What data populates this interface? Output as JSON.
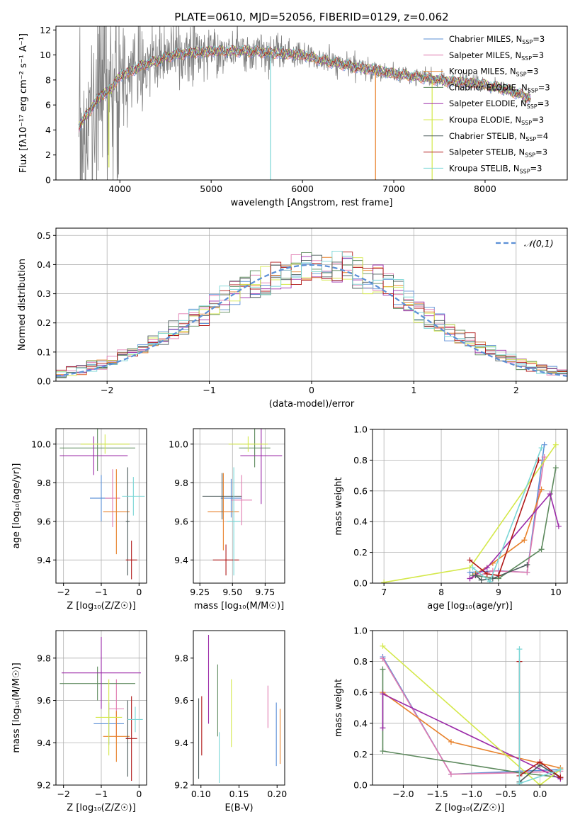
{
  "figure": {
    "title": "PLATE=0610, MJD=52056, FIBERID=0129, z=0.062"
  },
  "models": [
    {
      "label": "Chabrier MILES, N_SSP=3",
      "imf": "Chabrier",
      "lib": "MILES",
      "nssp": "3",
      "color": "#5b8fd6"
    },
    {
      "label": "Salpeter MILES, N_SSP=3",
      "imf": "Salpeter",
      "lib": "MILES",
      "nssp": "3",
      "color": "#e07bb0"
    },
    {
      "label": "Kroupa MILES, N_SSP=3",
      "imf": "Kroupa",
      "lib": "MILES",
      "nssp": "3",
      "color": "#e8822c"
    },
    {
      "label": "Chabrier ELODIE, N_SSP=3",
      "imf": "Chabrier",
      "lib": "ELODIE",
      "nssp": "3",
      "color": "#5e8a5e"
    },
    {
      "label": "Salpeter ELODIE, N_SSP=3",
      "imf": "Salpeter",
      "lib": "ELODIE",
      "nssp": "3",
      "color": "#9b2aa8"
    },
    {
      "label": "Kroupa ELODIE, N_SSP=3",
      "imf": "Kroupa",
      "lib": "ELODIE",
      "nssp": "3",
      "color": "#d4e84a"
    },
    {
      "label": "Chabrier STELIB, N_SSP=4",
      "imf": "Chabrier",
      "lib": "STELIB",
      "nssp": "4",
      "color": "#4a5a5a"
    },
    {
      "label": "Salpeter STELIB, N_SSP=3",
      "imf": "Salpeter",
      "lib": "STELIB",
      "nssp": "3",
      "color": "#b01818"
    },
    {
      "label": "Kroupa STELIB, N_SSP=3",
      "imf": "Kroupa",
      "lib": "STELIB",
      "nssp": "3",
      "color": "#7ad6d6"
    }
  ],
  "chart_data": [
    {
      "id": "spectrum",
      "type": "line",
      "title": "PLATE=0610, MJD=52056, FIBERID=0129, z=0.062",
      "xlabel": "wavelength [Angstrom, rest frame]",
      "ylabel": "Flux [fλ10⁻¹⁷ erg cm⁻² s⁻¹ A⁻¹]",
      "xlim": [
        3300,
        8900
      ],
      "ylim": [
        0,
        12.3
      ],
      "xticks": [
        4000,
        5000,
        6000,
        7000,
        8000
      ],
      "yticks": [
        0,
        2,
        4,
        6,
        8,
        10,
        12
      ],
      "grid": false,
      "legend": "top-right",
      "continuum": {
        "x": [
          3550,
          3600,
          3650,
          3700,
          3750,
          3800,
          3850,
          3900,
          3950,
          4000,
          4100,
          4200,
          4300,
          4400,
          4500,
          4600,
          4700,
          4800,
          4900,
          5000,
          5200,
          5400,
          5600,
          5800,
          6000,
          6200,
          6400,
          6600,
          6800,
          7000,
          7200,
          7400,
          7600,
          7800,
          8000,
          8200,
          8400,
          8500
        ],
        "y": [
          4.3,
          4.8,
          5.3,
          5.9,
          6.3,
          6.8,
          7.0,
          7.2,
          7.8,
          8.3,
          8.6,
          9.0,
          9.3,
          9.5,
          9.8,
          10.0,
          10.1,
          10.2,
          10.2,
          10.3,
          10.3,
          10.3,
          10.2,
          10.1,
          10.0,
          9.6,
          9.3,
          9.0,
          8.8,
          8.5,
          8.3,
          8.1,
          7.9,
          7.8,
          7.6,
          7.3,
          6.8,
          6.5
        ]
      },
      "data_noise": {
        "x_start": 3550,
        "x_end": 8500,
        "amp_blue": 5.5,
        "amp_red": 1.0
      },
      "spikes": [
        {
          "x": 3880,
          "ymin": 1.0,
          "ymax": 7.0
        },
        {
          "x": 5650,
          "ymin": 0.0,
          "ymax": 10.0
        },
        {
          "x": 6800,
          "ymin": 0.0,
          "ymax": 8.6
        },
        {
          "x": 7420,
          "ymin": 0.0,
          "ymax": 8.0
        }
      ]
    },
    {
      "id": "residuals",
      "type": "step",
      "xlabel": "(data-model)/error",
      "ylabel": "Normed distribution",
      "xlim": [
        -2.5,
        2.5
      ],
      "ylim": [
        0,
        0.525
      ],
      "xticks": [
        -2,
        -1,
        0,
        1,
        2
      ],
      "yticks": [
        0.0,
        0.1,
        0.2,
        0.3,
        0.4,
        0.5
      ],
      "grid": true,
      "legend": "top-right",
      "reference": {
        "label": "𝒩(0,1)",
        "mean": 0,
        "sigma": 1,
        "color": "#5b8fd6"
      },
      "bins": {
        "start": -2.5,
        "width": 0.1,
        "count": 50
      }
    },
    {
      "id": "z-age",
      "type": "errorbar",
      "xlabel": "Z [log₁₀(Z/Z☉)]",
      "ylabel": "age  [log₁₀(age/yr)]",
      "xlim": [
        -2.2,
        0.2
      ],
      "ylim": [
        9.28,
        10.08
      ],
      "xticks": [
        -2,
        -1,
        0
      ],
      "yticks": [
        9.4,
        9.6,
        9.8,
        10.0
      ],
      "grid": true,
      "points": [
        {
          "model": 0,
          "x": -1.0,
          "xerr": 0.3,
          "y": 9.72,
          "yerr": 0.12
        },
        {
          "model": 1,
          "x": -0.7,
          "xerr": 0.2,
          "y": 9.72,
          "yerr": 0.15
        },
        {
          "model": 2,
          "x": -0.6,
          "xerr": 0.35,
          "y": 9.65,
          "yerr": 0.22
        },
        {
          "model": 3,
          "x": -1.1,
          "xerr": 1.0,
          "y": 9.98,
          "yerr": 0.12
        },
        {
          "model": 4,
          "x": -1.2,
          "xerr": 0.9,
          "y": 9.94,
          "yerr": 0.1
        },
        {
          "model": 5,
          "x": -0.9,
          "xerr": 0.65,
          "y": 10.0,
          "yerr": 0.05
        },
        {
          "model": 6,
          "x": -0.3,
          "xerr": 0.05,
          "y": 9.6,
          "yerr": 0.28
        },
        {
          "model": 7,
          "x": -0.2,
          "xerr": 0.15,
          "y": 9.4,
          "yerr": 0.1
        },
        {
          "model": 8,
          "x": -0.15,
          "xerr": 0.3,
          "y": 9.73,
          "yerr": 0.1
        }
      ]
    },
    {
      "id": "mass-age",
      "type": "errorbar",
      "xlabel": "mass [log₁₀(M/M☉)]",
      "ylabel": "",
      "xlim": [
        9.2,
        9.9
      ],
      "ylim": [
        9.28,
        10.08
      ],
      "xticks": [
        9.25,
        9.5,
        9.75
      ],
      "yticks": [
        9.4,
        9.6,
        9.8,
        10.0
      ],
      "grid": true,
      "points": [
        {
          "model": 0,
          "x": 9.49,
          "xerr": 0.08,
          "y": 9.72,
          "yerr": 0.1
        },
        {
          "model": 1,
          "x": 9.57,
          "xerr": 0.08,
          "y": 9.71,
          "yerr": 0.13
        },
        {
          "model": 2,
          "x": 9.43,
          "xerr": 0.12,
          "y": 9.65,
          "yerr": 0.2
        },
        {
          "model": 3,
          "x": 9.67,
          "xerr": 0.12,
          "y": 9.98,
          "yerr": 0.1
        },
        {
          "model": 4,
          "x": 9.72,
          "xerr": 0.16,
          "y": 9.94,
          "yerr": 0.25
        },
        {
          "model": 5,
          "x": 9.62,
          "xerr": 0.15,
          "y": 10.0,
          "yerr": 0.04
        },
        {
          "model": 6,
          "x": 9.42,
          "xerr": 0.15,
          "y": 9.73,
          "yerr": 0.12
        },
        {
          "model": 7,
          "x": 9.45,
          "xerr": 0.1,
          "y": 9.4,
          "yerr": 0.08
        },
        {
          "model": 8,
          "x": 9.51,
          "xerr": 0.05,
          "y": 9.6,
          "yerr": 0.28
        }
      ]
    },
    {
      "id": "age-weight",
      "type": "line",
      "xlabel": "age  [log₁₀(age/yr)]",
      "ylabel": "mass weight",
      "xlim": [
        6.8,
        10.2
      ],
      "ylim": [
        0,
        1.0
      ],
      "xticks": [
        7,
        8,
        9,
        10
      ],
      "yticks": [
        0.0,
        0.2,
        0.4,
        0.6,
        0.8,
        1.0
      ],
      "grid": true,
      "series": [
        {
          "model": 0,
          "x": [
            8.5,
            9.0,
            9.5,
            9.8
          ],
          "y": [
            0.07,
            0.08,
            0.07,
            0.9
          ]
        },
        {
          "model": 1,
          "x": [
            8.5,
            8.9,
            9.5,
            9.8
          ],
          "y": [
            0.03,
            0.08,
            0.07,
            0.82
          ]
        },
        {
          "model": 2,
          "x": [
            8.6,
            8.9,
            9.45,
            9.75
          ],
          "y": [
            0.06,
            0.13,
            0.28,
            0.61
          ]
        },
        {
          "model": 3,
          "x": [
            8.55,
            9.0,
            9.75,
            10.0
          ],
          "y": [
            0.05,
            0.03,
            0.22,
            0.75
          ]
        },
        {
          "model": 4,
          "x": [
            8.5,
            8.8,
            9.9,
            10.05
          ],
          "y": [
            0.03,
            0.1,
            0.58,
            0.37
          ]
        },
        {
          "model": 5,
          "x": [
            7.0,
            8.5,
            10.0
          ],
          "y": [
            0.005,
            0.1,
            0.9
          ]
        },
        {
          "model": 6,
          "x": [
            8.6,
            8.7,
            8.9,
            9.5
          ],
          "y": [
            0.05,
            0.02,
            0.03,
            0.12
          ]
        },
        {
          "model": 7,
          "x": [
            8.5,
            8.8,
            9.0,
            9.7
          ],
          "y": [
            0.15,
            0.06,
            0.05,
            0.8
          ]
        },
        {
          "model": 8,
          "x": [
            8.55,
            8.85,
            9.75
          ],
          "y": [
            0.1,
            0.01,
            0.88
          ]
        }
      ]
    },
    {
      "id": "z-mass",
      "type": "errorbar",
      "xlabel": "Z [log₁₀(Z/Z☉)]",
      "ylabel": "mass [log₁₀(M/M☉)]",
      "xlim": [
        -2.2,
        0.2
      ],
      "ylim": [
        9.2,
        9.93
      ],
      "xticks": [
        -2,
        -1,
        0
      ],
      "yticks": [
        9.2,
        9.4,
        9.6,
        9.8
      ],
      "grid": true,
      "points": [
        {
          "model": 0,
          "x": -0.8,
          "xerr": 0.4,
          "y": 9.49,
          "yerr": 0.1
        },
        {
          "model": 1,
          "x": -0.6,
          "xerr": 0.2,
          "y": 9.56,
          "yerr": 0.14
        },
        {
          "model": 2,
          "x": -0.6,
          "xerr": 0.35,
          "y": 9.43,
          "yerr": 0.12
        },
        {
          "model": 3,
          "x": -1.1,
          "xerr": 1.0,
          "y": 9.68,
          "yerr": 0.08
        },
        {
          "model": 4,
          "x": -1.0,
          "xerr": 1.05,
          "y": 9.73,
          "yerr": 0.17
        },
        {
          "model": 5,
          "x": -0.8,
          "xerr": 0.35,
          "y": 9.52,
          "yerr": 0.18
        },
        {
          "model": 6,
          "x": -0.3,
          "xerr": 0.05,
          "y": 9.42,
          "yerr": 0.18
        },
        {
          "model": 7,
          "x": -0.2,
          "xerr": 0.15,
          "y": 9.42,
          "yerr": 0.2
        },
        {
          "model": 8,
          "x": -0.1,
          "xerr": 0.2,
          "y": 9.51,
          "yerr": 0.06
        }
      ]
    },
    {
      "id": "ebv-mass",
      "type": "errorbar",
      "xlabel": "E(B-V)",
      "ylabel": "",
      "xlim": [
        0.09,
        0.21
      ],
      "ylim": [
        9.2,
        9.93
      ],
      "xticks": [
        0.1,
        0.15,
        0.2
      ],
      "yticks": [
        9.2,
        9.4,
        9.6,
        9.8
      ],
      "grid": false,
      "points": [
        {
          "model": 0,
          "x": 0.199,
          "xerr": 0,
          "y": 9.44,
          "yerr": 0.15
        },
        {
          "model": 1,
          "x": 0.188,
          "xerr": 0,
          "y": 9.57,
          "yerr": 0.1
        },
        {
          "model": 2,
          "x": 0.204,
          "xerr": 0,
          "y": 9.43,
          "yerr": 0.13
        },
        {
          "model": 3,
          "x": 0.122,
          "xerr": 0,
          "y": 9.6,
          "yerr": 0.17
        },
        {
          "model": 4,
          "x": 0.11,
          "xerr": 0,
          "y": 9.7,
          "yerr": 0.21
        },
        {
          "model": 5,
          "x": 0.14,
          "xerr": 0,
          "y": 9.54,
          "yerr": 0.16
        },
        {
          "model": 6,
          "x": 0.097,
          "xerr": 0,
          "y": 9.42,
          "yerr": 0.19
        },
        {
          "model": 7,
          "x": 0.101,
          "xerr": 0,
          "y": 9.48,
          "yerr": 0.14
        },
        {
          "model": 8,
          "x": 0.124,
          "xerr": 0,
          "y": 9.33,
          "yerr": 0.12
        }
      ]
    },
    {
      "id": "z-weight",
      "type": "line",
      "xlabel": "Z [log₁₀(Z/Z☉)]",
      "ylabel": "mass weight",
      "xlim": [
        -2.45,
        0.4
      ],
      "ylim": [
        0,
        1.0
      ],
      "xticks": [
        -2.0,
        -1.5,
        -1.0,
        -0.5,
        0.0
      ],
      "yticks": [
        0.0,
        0.2,
        0.4,
        0.6,
        0.8,
        1.0
      ],
      "grid": true,
      "series": [
        {
          "model": 0,
          "x": [
            -2.3,
            -1.3,
            -0.3,
            0.3
          ],
          "y": [
            0.83,
            0.07,
            0.09,
            0.1
          ]
        },
        {
          "model": 1,
          "x": [
            -2.3,
            -1.3,
            -0.3,
            0.3
          ],
          "y": [
            0.82,
            0.07,
            0.08,
            0.09
          ]
        },
        {
          "model": 2,
          "x": [
            -2.3,
            -1.3,
            0.3
          ],
          "y": [
            0.6,
            0.28,
            0.11
          ]
        },
        {
          "model": 3,
          "x": [
            -2.3,
            -2.3,
            -0.3,
            0.3
          ],
          "y": [
            0.75,
            0.22,
            0.08,
            0.05
          ]
        },
        {
          "model": 4,
          "x": [
            -2.3,
            -2.3,
            0.3
          ],
          "y": [
            0.37,
            0.59,
            0.04
          ]
        },
        {
          "model": 5,
          "x": [
            -2.3,
            0.0,
            0.3
          ],
          "y": [
            0.9,
            0.0,
            0.1
          ]
        },
        {
          "model": 6,
          "x": [
            -0.3,
            0.0,
            0.3
          ],
          "y": [
            0.02,
            0.13,
            0.05
          ]
        },
        {
          "model": 7,
          "x": [
            -0.3,
            -0.3,
            0.0,
            0.3
          ],
          "y": [
            0.8,
            0.06,
            0.15,
            0.05
          ]
        },
        {
          "model": 8,
          "x": [
            -0.3,
            -0.3,
            0.3
          ],
          "y": [
            0.88,
            0.01,
            0.1
          ]
        }
      ]
    }
  ]
}
